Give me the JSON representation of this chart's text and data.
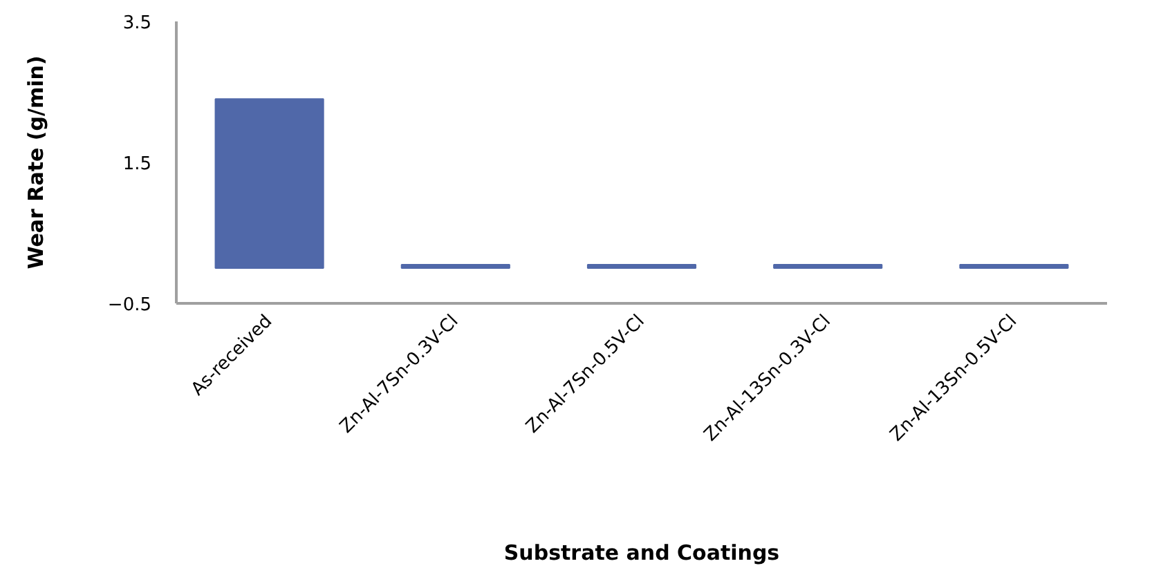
{
  "chart_data": {
    "type": "bar",
    "xlabel": "Substrate and Coatings",
    "ylabel": "Wear Rate (g/min)",
    "categories": [
      "As-received",
      "Zn-Al-7Sn-0.3V-Cl",
      "Zn-Al-7Sn-0.5V-Cl",
      "Zn-Al-13Sn-0.3V-Cl",
      "Zn-Al-13Sn-0.5V-Cl"
    ],
    "values": [
      2.4,
      0.05,
      0.05,
      0.05,
      0.05
    ],
    "color": "#5068a9",
    "ylim": [
      -0.5,
      3.5
    ],
    "yticks": [
      -0.5,
      1.5,
      3.5
    ],
    "grid": false
  }
}
